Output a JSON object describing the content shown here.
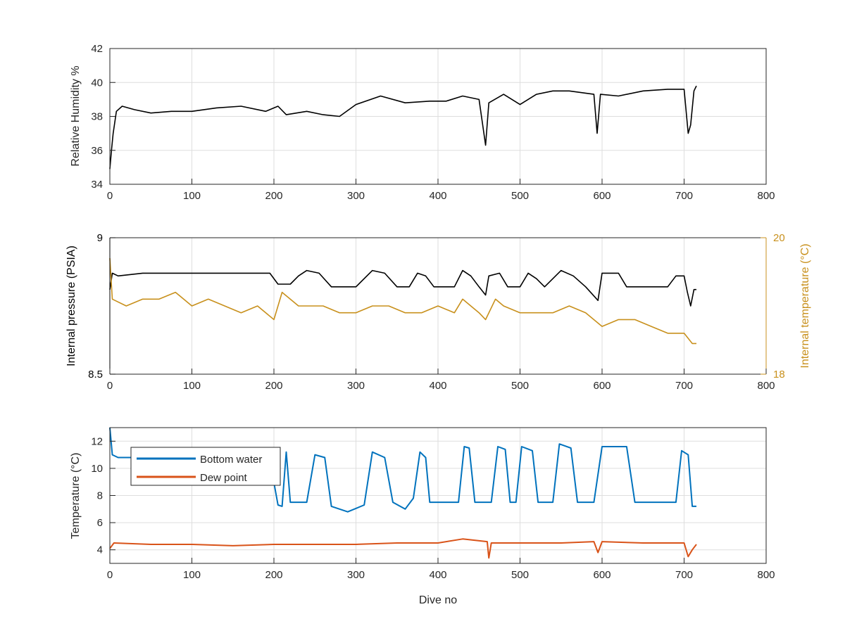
{
  "chart_data": [
    {
      "type": "line",
      "title": "",
      "xlabel": "",
      "ylabel": "Relative Humidity %",
      "xlim": [
        0,
        800
      ],
      "ylim": [
        34,
        42
      ],
      "xticks": [
        0,
        100,
        200,
        300,
        400,
        500,
        600,
        700,
        800
      ],
      "yticks": [
        34,
        36,
        38,
        40,
        42
      ],
      "grid": true,
      "series": [
        {
          "name": "",
          "color": "#000000",
          "points": [
            [
              0,
              34.9
            ],
            [
              2,
              36.0
            ],
            [
              4,
              37.0
            ],
            [
              8,
              38.3
            ],
            [
              15,
              38.6
            ],
            [
              30,
              38.4
            ],
            [
              50,
              38.2
            ],
            [
              75,
              38.3
            ],
            [
              100,
              38.3
            ],
            [
              130,
              38.5
            ],
            [
              160,
              38.6
            ],
            [
              190,
              38.3
            ],
            [
              205,
              38.6
            ],
            [
              215,
              38.1
            ],
            [
              240,
              38.3
            ],
            [
              260,
              38.1
            ],
            [
              280,
              38.0
            ],
            [
              300,
              38.7
            ],
            [
              330,
              39.2
            ],
            [
              360,
              38.8
            ],
            [
              390,
              38.9
            ],
            [
              410,
              38.9
            ],
            [
              430,
              39.2
            ],
            [
              450,
              39.0
            ],
            [
              458,
              36.3
            ],
            [
              462,
              38.8
            ],
            [
              480,
              39.3
            ],
            [
              500,
              38.7
            ],
            [
              520,
              39.3
            ],
            [
              540,
              39.5
            ],
            [
              560,
              39.5
            ],
            [
              590,
              39.3
            ],
            [
              594,
              37.0
            ],
            [
              598,
              39.3
            ],
            [
              620,
              39.2
            ],
            [
              650,
              39.5
            ],
            [
              680,
              39.6
            ],
            [
              700,
              39.6
            ],
            [
              705,
              37.0
            ],
            [
              708,
              37.5
            ],
            [
              712,
              39.5
            ],
            [
              715,
              39.8
            ]
          ]
        }
      ]
    },
    {
      "type": "line",
      "title": "",
      "xlabel": "",
      "ylabel": "Internal pressure (PSIA)",
      "ylabel_right": "Internal temperature (°C)",
      "xlim": [
        0,
        800
      ],
      "ylim": [
        8.5,
        9
      ],
      "ylim_right": [
        18,
        20
      ],
      "xticks": [
        0,
        100,
        200,
        300,
        400,
        500,
        600,
        700,
        800
      ],
      "yticks": [
        8.5,
        9
      ],
      "yticks_right": [
        18,
        20
      ],
      "grid": true,
      "series": [
        {
          "name": "",
          "axis": "left",
          "color": "#000000",
          "points": [
            [
              0,
              8.81
            ],
            [
              3,
              8.87
            ],
            [
              10,
              8.86
            ],
            [
              40,
              8.87
            ],
            [
              80,
              8.87
            ],
            [
              120,
              8.87
            ],
            [
              160,
              8.87
            ],
            [
              195,
              8.87
            ],
            [
              205,
              8.83
            ],
            [
              220,
              8.83
            ],
            [
              230,
              8.86
            ],
            [
              240,
              8.88
            ],
            [
              255,
              8.87
            ],
            [
              270,
              8.82
            ],
            [
              300,
              8.82
            ],
            [
              320,
              8.88
            ],
            [
              335,
              8.87
            ],
            [
              350,
              8.82
            ],
            [
              365,
              8.82
            ],
            [
              375,
              8.87
            ],
            [
              385,
              8.86
            ],
            [
              395,
              8.82
            ],
            [
              420,
              8.82
            ],
            [
              430,
              8.88
            ],
            [
              440,
              8.86
            ],
            [
              450,
              8.82
            ],
            [
              458,
              8.79
            ],
            [
              462,
              8.86
            ],
            [
              475,
              8.87
            ],
            [
              485,
              8.82
            ],
            [
              500,
              8.82
            ],
            [
              510,
              8.87
            ],
            [
              520,
              8.85
            ],
            [
              530,
              8.82
            ],
            [
              550,
              8.88
            ],
            [
              565,
              8.86
            ],
            [
              580,
              8.82
            ],
            [
              595,
              8.77
            ],
            [
              600,
              8.87
            ],
            [
              620,
              8.87
            ],
            [
              630,
              8.82
            ],
            [
              680,
              8.82
            ],
            [
              690,
              8.86
            ],
            [
              700,
              8.86
            ],
            [
              704,
              8.8
            ],
            [
              708,
              8.75
            ],
            [
              712,
              8.81
            ],
            [
              715,
              8.81
            ]
          ]
        },
        {
          "name": "",
          "axis": "right",
          "color": "#C8901C",
          "points": [
            [
              0,
              19.7
            ],
            [
              3,
              19.1
            ],
            [
              20,
              19.0
            ],
            [
              40,
              19.1
            ],
            [
              60,
              19.1
            ],
            [
              80,
              19.2
            ],
            [
              100,
              19.0
            ],
            [
              120,
              19.1
            ],
            [
              140,
              19.0
            ],
            [
              160,
              18.9
            ],
            [
              180,
              19.0
            ],
            [
              200,
              18.8
            ],
            [
              210,
              19.2
            ],
            [
              230,
              19.0
            ],
            [
              260,
              19.0
            ],
            [
              280,
              18.9
            ],
            [
              300,
              18.9
            ],
            [
              320,
              19.0
            ],
            [
              340,
              19.0
            ],
            [
              360,
              18.9
            ],
            [
              380,
              18.9
            ],
            [
              400,
              19.0
            ],
            [
              420,
              18.9
            ],
            [
              430,
              19.1
            ],
            [
              440,
              19.0
            ],
            [
              450,
              18.9
            ],
            [
              458,
              18.8
            ],
            [
              470,
              19.1
            ],
            [
              480,
              19.0
            ],
            [
              500,
              18.9
            ],
            [
              520,
              18.9
            ],
            [
              540,
              18.9
            ],
            [
              560,
              19.0
            ],
            [
              580,
              18.9
            ],
            [
              600,
              18.7
            ],
            [
              620,
              18.8
            ],
            [
              640,
              18.8
            ],
            [
              660,
              18.7
            ],
            [
              680,
              18.6
            ],
            [
              700,
              18.6
            ],
            [
              710,
              18.45
            ],
            [
              715,
              18.45
            ]
          ]
        }
      ]
    },
    {
      "type": "line",
      "title": "",
      "xlabel": "Dive no",
      "ylabel": "Temperature (°C)",
      "xlim": [
        0,
        800
      ],
      "ylim": [
        3,
        13
      ],
      "xticks": [
        0,
        100,
        200,
        300,
        400,
        500,
        600,
        700,
        800
      ],
      "yticks": [
        4,
        6,
        8,
        10,
        12
      ],
      "grid": true,
      "legend": {
        "position": "top-left"
      },
      "series": [
        {
          "name": "Bottom water",
          "color": "#0072BD",
          "points": [
            [
              0,
              13.0
            ],
            [
              3,
              11.0
            ],
            [
              10,
              10.8
            ],
            [
              30,
              10.8
            ],
            [
              60,
              10.7
            ],
            [
              100,
              10.7
            ],
            [
              150,
              10.7
            ],
            [
              195,
              10.6
            ],
            [
              205,
              7.3
            ],
            [
              210,
              7.2
            ],
            [
              215,
              11.2
            ],
            [
              220,
              7.5
            ],
            [
              240,
              7.5
            ],
            [
              250,
              11.0
            ],
            [
              262,
              10.8
            ],
            [
              270,
              7.2
            ],
            [
              290,
              6.8
            ],
            [
              310,
              7.3
            ],
            [
              320,
              11.2
            ],
            [
              335,
              10.8
            ],
            [
              345,
              7.5
            ],
            [
              360,
              7.0
            ],
            [
              370,
              7.8
            ],
            [
              378,
              11.2
            ],
            [
              385,
              10.8
            ],
            [
              390,
              7.5
            ],
            [
              425,
              7.5
            ],
            [
              432,
              11.6
            ],
            [
              438,
              11.5
            ],
            [
              445,
              7.5
            ],
            [
              465,
              7.5
            ],
            [
              473,
              11.6
            ],
            [
              482,
              11.4
            ],
            [
              488,
              7.5
            ],
            [
              495,
              7.5
            ],
            [
              502,
              11.6
            ],
            [
              515,
              11.3
            ],
            [
              522,
              7.5
            ],
            [
              540,
              7.5
            ],
            [
              548,
              11.8
            ],
            [
              562,
              11.5
            ],
            [
              570,
              7.5
            ],
            [
              590,
              7.5
            ],
            [
              600,
              11.6
            ],
            [
              630,
              11.6
            ],
            [
              640,
              7.5
            ],
            [
              690,
              7.5
            ],
            [
              697,
              11.3
            ],
            [
              705,
              11.0
            ],
            [
              710,
              7.2
            ],
            [
              715,
              7.2
            ]
          ]
        },
        {
          "name": "Dew point",
          "color": "#D95319",
          "points": [
            [
              0,
              4.1
            ],
            [
              5,
              4.5
            ],
            [
              50,
              4.4
            ],
            [
              100,
              4.4
            ],
            [
              150,
              4.3
            ],
            [
              200,
              4.4
            ],
            [
              250,
              4.4
            ],
            [
              300,
              4.4
            ],
            [
              350,
              4.5
            ],
            [
              400,
              4.5
            ],
            [
              430,
              4.8
            ],
            [
              460,
              4.6
            ],
            [
              462,
              3.4
            ],
            [
              465,
              4.5
            ],
            [
              500,
              4.5
            ],
            [
              550,
              4.5
            ],
            [
              590,
              4.6
            ],
            [
              595,
              3.8
            ],
            [
              600,
              4.6
            ],
            [
              650,
              4.5
            ],
            [
              700,
              4.5
            ],
            [
              705,
              3.5
            ],
            [
              710,
              4.0
            ],
            [
              715,
              4.4
            ]
          ]
        }
      ]
    }
  ]
}
